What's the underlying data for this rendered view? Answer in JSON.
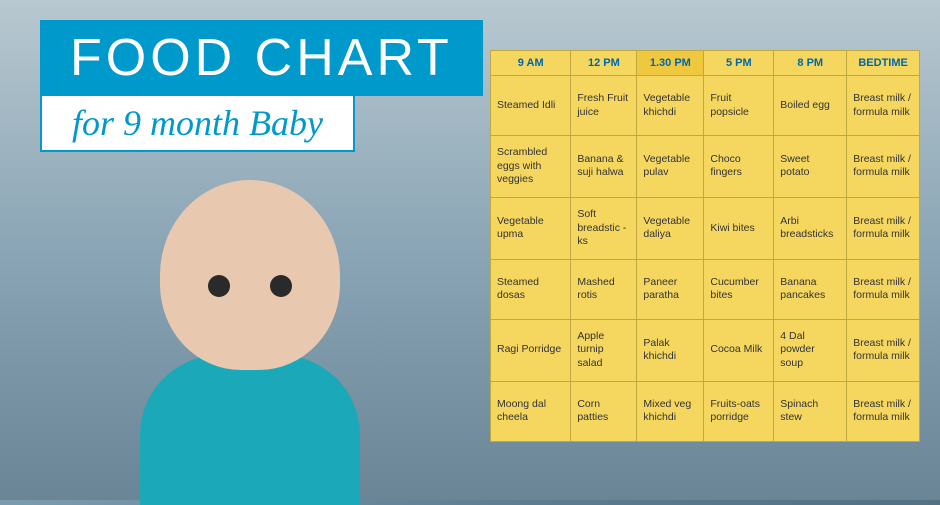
{
  "title": {
    "main": "FOOD CHART",
    "sub": "for 9 month Baby"
  },
  "table": {
    "type": "table",
    "header_bg": "#f5d760",
    "header_color": "#0066aa",
    "cell_bg": "#f5d760",
    "border_color": "#c0a840",
    "columns": [
      "9 AM",
      "12 PM",
      "1.30 PM",
      "5 PM",
      "8 PM",
      "BEDTIME"
    ],
    "highlight_col_index": 2,
    "rows": [
      [
        "Steamed Idli",
        "Fresh Fruit juice",
        "Vegetable khichdi",
        "Fruit popsicle",
        "Boiled egg",
        "Breast milk / formula milk"
      ],
      [
        "Scrambled eggs with veggies",
        "Banana & suji halwa",
        "Vegetable pulav",
        "Choco fingers",
        "Sweet potato",
        "Breast milk / formula milk"
      ],
      [
        "Vegetable upma",
        "Soft breadstic -ks",
        "Vegetable daliya",
        "Kiwi bites",
        "Arbi breadsticks",
        "Breast milk / formula milk"
      ],
      [
        "Steamed dosas",
        "Mashed rotis",
        "Paneer paratha",
        "Cucumber bites",
        "Banana pancakes",
        "Breast milk / formula milk"
      ],
      [
        "Ragi Porridge",
        "Apple turnip salad",
        "Palak khichdi",
        "Cocoa Milk",
        "4 Dal powder soup",
        "Breast milk / formula milk"
      ],
      [
        "Moong dal cheela",
        "Corn patties",
        "Mixed veg khichdi",
        "Fruits-oats porridge",
        "Spinach stew",
        "Breast milk / formula milk"
      ]
    ]
  },
  "colors": {
    "title_bg": "#0099cc",
    "title_text": "#ffffff",
    "sub_bg": "#ffffff",
    "sub_text": "#0099cc"
  }
}
